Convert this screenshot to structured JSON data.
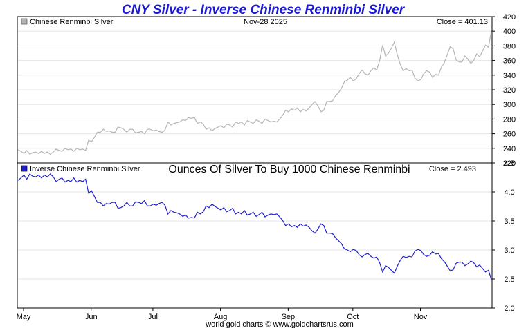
{
  "title": "CNY Silver - Inverse Chinese Renminbi Silver",
  "footer": "world gold charts © www.goldchartsrus.com",
  "colors": {
    "title": "#1a1ad6",
    "top_line": "#b4b4b4",
    "bottom_line": "#1f1fd0",
    "grid": "#e6e6e6"
  },
  "chart_data": [
    {
      "type": "line",
      "legend": "Chinese Renminbi Silver",
      "date_label": "Nov-28  2025",
      "close_label": "Close = 401.13",
      "ylim": [
        220,
        420
      ],
      "yticks": [
        "420",
        "400",
        "380",
        "360",
        "340",
        "320",
        "300",
        "280",
        "260",
        "240",
        "220"
      ],
      "series": [
        {
          "name": "Chinese Renminbi Silver",
          "values": [
            238,
            236,
            233,
            237,
            232,
            234,
            235,
            233,
            236,
            233,
            235,
            232,
            235,
            239,
            237,
            236,
            240,
            238,
            239,
            236,
            240,
            238,
            239,
            237,
            251,
            249,
            255,
            262,
            262,
            266,
            263,
            264,
            262,
            262,
            269,
            268,
            266,
            262,
            266,
            266,
            261,
            262,
            263,
            260,
            266,
            266,
            264,
            265,
            263,
            262,
            265,
            276,
            272,
            274,
            275,
            276,
            279,
            278,
            282,
            281,
            282,
            274,
            276,
            273,
            266,
            268,
            264,
            267,
            269,
            271,
            268,
            273,
            272,
            269,
            276,
            274,
            276,
            272,
            278,
            276,
            274,
            279,
            277,
            274,
            280,
            278,
            276,
            277,
            276,
            280,
            285,
            292,
            290,
            294,
            292,
            295,
            290,
            293,
            291,
            295,
            300,
            304,
            298,
            290,
            292,
            304,
            304,
            305,
            312,
            316,
            322,
            331,
            333,
            337,
            332,
            335,
            342,
            347,
            342,
            340,
            346,
            350,
            347,
            360,
            381,
            366,
            370,
            377,
            385,
            368,
            355,
            346,
            349,
            346,
            347,
            336,
            332,
            334,
            342,
            346,
            344,
            337,
            341,
            340,
            351,
            357,
            368,
            379,
            376,
            361,
            358,
            358,
            366,
            362,
            356,
            360,
            369,
            365,
            373,
            381,
            378,
            401
          ]
        }
      ]
    },
    {
      "type": "line",
      "legend": "Inverse Chinese Renminbi Silver",
      "subtitle": "Ounces Of Silver To Buy 1000 Chinese Renminbi",
      "close_label": "Close = 2.493",
      "ylim": [
        2.0,
        4.5
      ],
      "yticks": [
        "4.5",
        "4.0",
        "3.5",
        "3.0",
        "2.5",
        "2.0"
      ],
      "series": [
        {
          "name": "Inverse Chinese Renminbi Silver",
          "values": [
            4.2,
            4.24,
            4.29,
            4.22,
            4.31,
            4.27,
            4.26,
            4.29,
            4.24,
            4.29,
            4.26,
            4.31,
            4.26,
            4.18,
            4.22,
            4.24,
            4.17,
            4.2,
            4.18,
            4.24,
            4.17,
            4.2,
            4.18,
            4.22,
            3.98,
            4.02,
            3.92,
            3.82,
            3.82,
            3.76,
            3.8,
            3.79,
            3.82,
            3.82,
            3.72,
            3.73,
            3.76,
            3.82,
            3.76,
            3.76,
            3.83,
            3.82,
            3.8,
            3.85,
            3.76,
            3.76,
            3.79,
            3.77,
            3.8,
            3.82,
            3.77,
            3.62,
            3.68,
            3.65,
            3.64,
            3.62,
            3.58,
            3.6,
            3.55,
            3.56,
            3.55,
            3.65,
            3.62,
            3.66,
            3.76,
            3.73,
            3.79,
            3.75,
            3.72,
            3.69,
            3.73,
            3.66,
            3.68,
            3.72,
            3.62,
            3.65,
            3.62,
            3.68,
            3.6,
            3.62,
            3.65,
            3.58,
            3.61,
            3.65,
            3.57,
            3.6,
            3.62,
            3.61,
            3.62,
            3.57,
            3.51,
            3.42,
            3.45,
            3.4,
            3.42,
            3.39,
            3.45,
            3.41,
            3.43,
            3.39,
            3.33,
            3.29,
            3.36,
            3.45,
            3.42,
            3.29,
            3.29,
            3.28,
            3.21,
            3.16,
            3.11,
            3.02,
            3.0,
            2.97,
            3.01,
            2.99,
            2.92,
            2.88,
            2.92,
            2.94,
            2.89,
            2.86,
            2.88,
            2.78,
            2.62,
            2.73,
            2.7,
            2.65,
            2.6,
            2.72,
            2.82,
            2.89,
            2.87,
            2.89,
            2.88,
            2.98,
            3.01,
            2.99,
            2.92,
            2.89,
            2.91,
            2.97,
            2.93,
            2.94,
            2.85,
            2.8,
            2.72,
            2.64,
            2.66,
            2.77,
            2.79,
            2.79,
            2.73,
            2.76,
            2.81,
            2.78,
            2.71,
            2.74,
            2.68,
            2.62,
            2.65,
            2.49
          ]
        }
      ]
    }
  ],
  "x_axis": {
    "labels": [
      "May",
      "Jun",
      "Jul",
      "Aug",
      "Sep",
      "Oct",
      "Nov"
    ],
    "positions": [
      0,
      23,
      44,
      67,
      90,
      112,
      135
    ],
    "count": 162
  }
}
